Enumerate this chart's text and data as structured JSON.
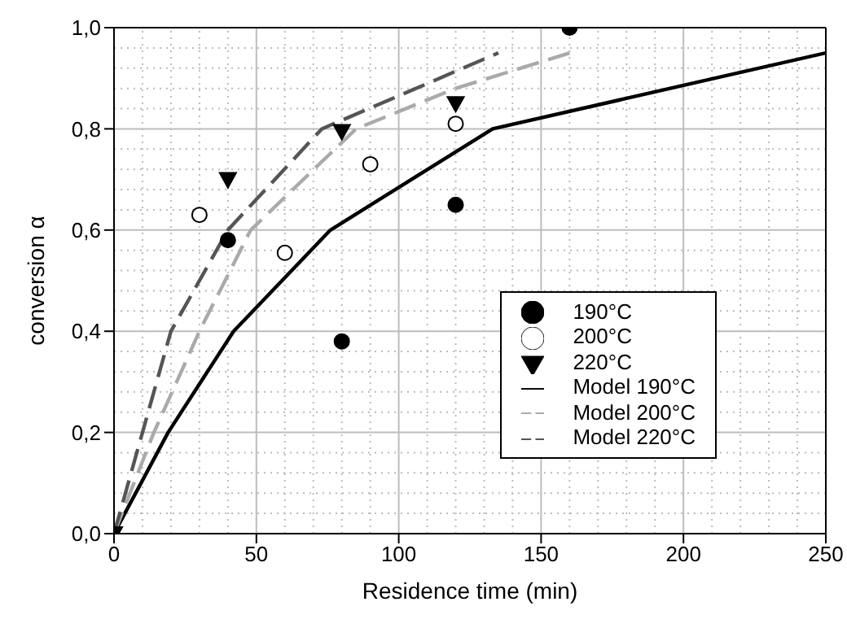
{
  "chart_data": {
    "type": "scatter",
    "xlabel": "Residence time (min)",
    "ylabel": "conversion α",
    "xlim": [
      0,
      250
    ],
    "xticks": [
      0,
      50,
      100,
      150,
      200,
      250
    ],
    "ylim": [
      0,
      1
    ],
    "yticks": [
      {
        "value": 0,
        "label": "0,0"
      },
      {
        "value": 0.2,
        "label": "0,2"
      },
      {
        "value": 0.4,
        "label": "0,4"
      },
      {
        "value": 0.6,
        "label": "0,6"
      },
      {
        "value": 0.8,
        "label": "0,8"
      },
      {
        "value": 1,
        "label": "1,0"
      }
    ],
    "grid": true,
    "legend": "bottom right",
    "series": [
      {
        "name": "190°C",
        "marker": "circle",
        "color": "#000000",
        "x": [
          40,
          80,
          120,
          160
        ],
        "values": [
          0.58,
          0.38,
          0.65,
          1.0
        ]
      },
      {
        "name": "200°C",
        "marker": "circle",
        "color": "#ffffff",
        "x": [
          30,
          60,
          90,
          120
        ],
        "values": [
          0.63,
          0.555,
          0.73,
          0.81
        ]
      },
      {
        "name": "220°C",
        "marker": "triangle",
        "color": "#000000",
        "x": [
          0,
          40,
          80,
          120
        ],
        "values": [
          0,
          0.7,
          0.795,
          0.85
        ]
      },
      {
        "name": "Model 190°C",
        "type": "line",
        "line_style": "solid",
        "color": "#000000",
        "x": [
          0,
          19,
          42,
          76,
          133,
          250
        ],
        "values": [
          0,
          0.2,
          0.4,
          0.6,
          0.8,
          0.95
        ]
      },
      {
        "name": "Model 200°C",
        "type": "line",
        "line_style": "dashed",
        "color": "#aaaaaa",
        "x": [
          0,
          14,
          30,
          48,
          85,
          120,
          160
        ],
        "values": [
          0,
          0.2,
          0.4,
          0.6,
          0.8,
          0.88,
          0.95
        ]
      },
      {
        "name": "Model 220°C",
        "type": "line",
        "line_style": "dashed",
        "color": "#555555",
        "x": [
          0,
          10,
          20,
          40,
          73,
          135
        ],
        "values": [
          0,
          0.2,
          0.4,
          0.6,
          0.8,
          0.95
        ]
      }
    ]
  }
}
